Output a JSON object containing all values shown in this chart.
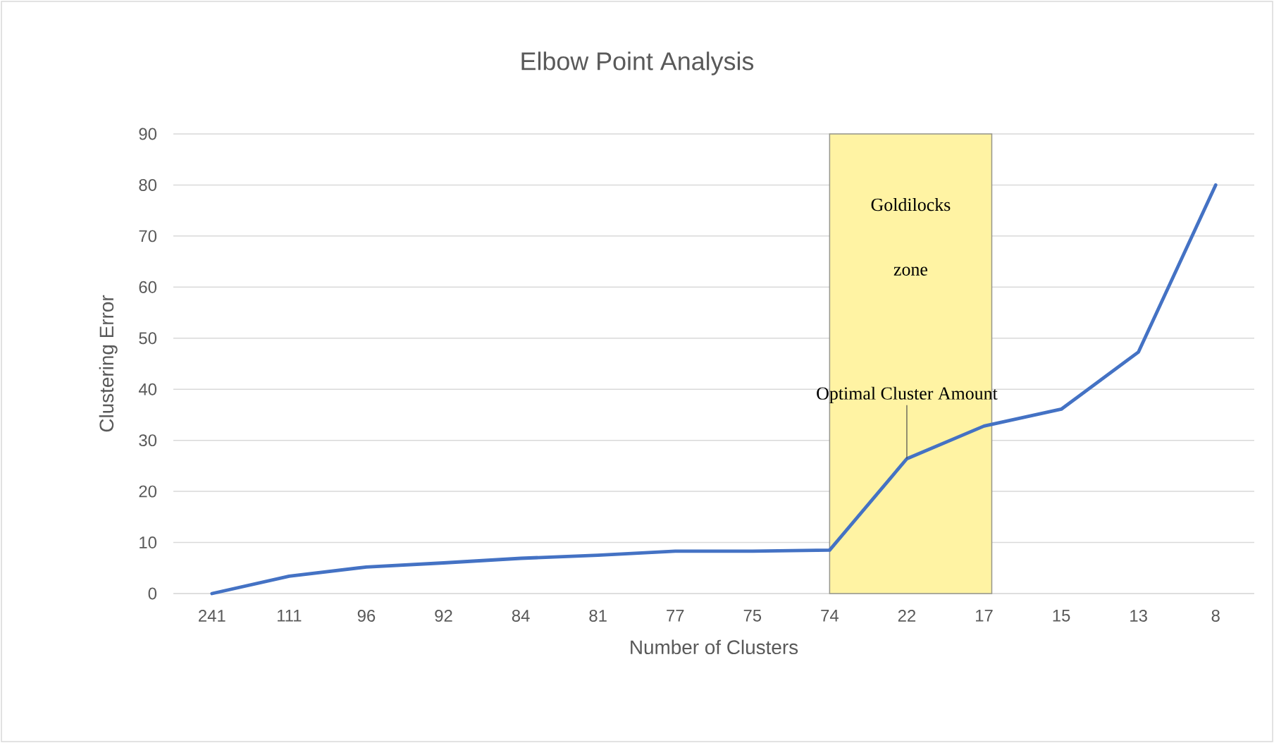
{
  "chart_data": {
    "type": "line",
    "title": "Elbow Point Analysis",
    "xlabel": "Number of Clusters",
    "ylabel": "Clustering Error",
    "categories": [
      "241",
      "111",
      "96",
      "92",
      "84",
      "81",
      "77",
      "75",
      "74",
      "22",
      "17",
      "15",
      "13",
      "8"
    ],
    "series": [
      {
        "color": "#4472c4",
        "values": [
          0,
          3.4,
          5.2,
          6.0,
          6.9,
          7.5,
          8.3,
          8.3,
          8.5,
          26.4,
          32.8,
          36.1,
          47.3,
          80
        ]
      }
    ],
    "ylim": [
      0,
      90
    ],
    "yticks": [
      0,
      10,
      20,
      30,
      40,
      50,
      60,
      70,
      80,
      90
    ],
    "grid": "y",
    "marker": "none",
    "line_style": "solid",
    "bands": [
      {
        "axis": "x",
        "from": "74",
        "to": "17",
        "label": "Goldilocks zone",
        "color": "#fff3a3"
      }
    ],
    "annotations": [
      {
        "text": "Optimal Cluster Amount",
        "x": "22",
        "y": 26.4
      }
    ]
  }
}
